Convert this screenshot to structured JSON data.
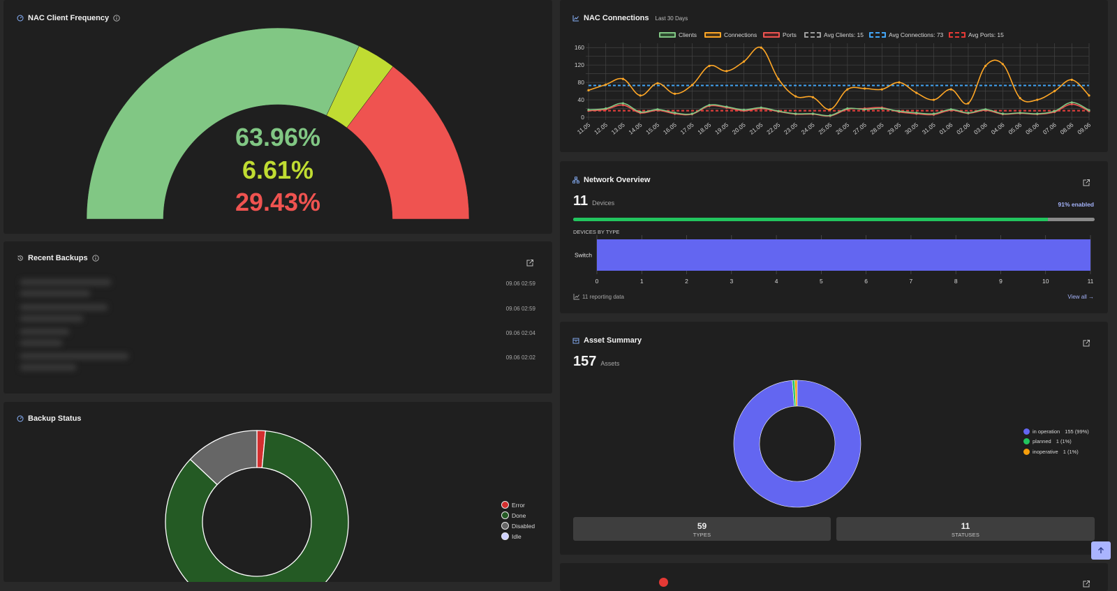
{
  "nac_frequency": {
    "title": "NAC Client Frequency",
    "segments": [
      {
        "percent_label": "63.96%",
        "value": 63.96,
        "color": "#81c784"
      },
      {
        "percent_label": "6.61%",
        "value": 6.61,
        "color": "#c0dc32"
      },
      {
        "percent_label": "29.43%",
        "value": 29.43,
        "color": "#ef5350"
      }
    ]
  },
  "recent_backups": {
    "title": "Recent Backups",
    "items": [
      {
        "time": "09.06 02:59"
      },
      {
        "time": "09.06 02:59"
      },
      {
        "time": "09.06 02:04"
      },
      {
        "time": "09.06 02:02"
      }
    ]
  },
  "backup_status": {
    "title": "Backup Status",
    "legend": [
      {
        "label": "Error",
        "color": "#d32f2f"
      },
      {
        "label": "Done",
        "color": "#245a24"
      },
      {
        "label": "Disabled",
        "color": "#666666"
      },
      {
        "label": "Idle",
        "color": "#cfd2ff"
      }
    ]
  },
  "nac_connections": {
    "title": "NAC Connections",
    "subtitle": "Last 30 Days",
    "legend": [
      {
        "label": "Clients",
        "color": "#81c784",
        "dashed": false
      },
      {
        "label": "Connections",
        "color": "#ffa726",
        "dashed": false
      },
      {
        "label": "Ports",
        "color": "#ef5350",
        "dashed": false
      },
      {
        "label": "Avg Clients: 15",
        "color": "#9e9e9e",
        "dashed": true
      },
      {
        "label": "Avg Connections: 73",
        "color": "#42a5f5",
        "dashed": true
      },
      {
        "label": "Avg Ports: 15",
        "color": "#e53935",
        "dashed": true
      }
    ]
  },
  "chart_data": [
    {
      "type": "pie",
      "title": "NAC Client Frequency",
      "categories": [
        "",
        "",
        ""
      ],
      "values": [
        63.96,
        6.61,
        29.43
      ]
    },
    {
      "type": "pie",
      "title": "Backup Status",
      "categories": [
        "Error",
        "Done",
        "Disabled",
        "Idle"
      ],
      "values": [
        1.5,
        85.5,
        13,
        0
      ]
    },
    {
      "type": "line",
      "title": "NAC Connections",
      "subtitle": "Last 30 Days",
      "x": [
        "11.05",
        "12.05",
        "13.05",
        "14.05",
        "15.05",
        "16.05",
        "17.05",
        "18.05",
        "19.05",
        "20.05",
        "21.05",
        "22.05",
        "23.05",
        "24.05",
        "25.05",
        "26.05",
        "27.05",
        "28.05",
        "29.05",
        "30.05",
        "31.05",
        "01.06",
        "02.06",
        "03.06",
        "04.06",
        "05.06",
        "06.06",
        "07.06",
        "08.06",
        "09.06"
      ],
      "ylim": [
        0,
        170
      ],
      "yticks": [
        0,
        40,
        80,
        120,
        160
      ],
      "grid": true,
      "legend_position": "top",
      "series": [
        {
          "name": "Clients",
          "color": "#81c784",
          "values": [
            17,
            20,
            32,
            12,
            18,
            10,
            8,
            28,
            24,
            17,
            22,
            14,
            8,
            8,
            4,
            20,
            18,
            20,
            14,
            10,
            8,
            18,
            10,
            18,
            8,
            10,
            8,
            14,
            34,
            16
          ]
        },
        {
          "name": "Connections",
          "color": "#ffa726",
          "values": [
            62,
            75,
            88,
            50,
            78,
            54,
            74,
            118,
            106,
            128,
            160,
            88,
            48,
            46,
            18,
            64,
            66,
            64,
            80,
            56,
            40,
            64,
            32,
            118,
            122,
            44,
            40,
            60,
            86,
            50
          ]
        },
        {
          "name": "Ports",
          "color": "#ef5350",
          "values": [
            15,
            18,
            28,
            10,
            16,
            8,
            7,
            26,
            22,
            15,
            20,
            13,
            7,
            7,
            3,
            18,
            20,
            22,
            12,
            8,
            6,
            16,
            9,
            16,
            7,
            9,
            7,
            12,
            30,
            14
          ]
        },
        {
          "name": "Avg Clients: 15",
          "color": "#9e9e9e",
          "values": [
            15,
            15,
            15,
            15,
            15,
            15,
            15,
            15,
            15,
            15,
            15,
            15,
            15,
            15,
            15,
            15,
            15,
            15,
            15,
            15,
            15,
            15,
            15,
            15,
            15,
            15,
            15,
            15,
            15,
            15
          ]
        },
        {
          "name": "Avg Connections: 73",
          "color": "#42a5f5",
          "values": [
            73,
            73,
            73,
            73,
            73,
            73,
            73,
            73,
            73,
            73,
            73,
            73,
            73,
            73,
            73,
            73,
            73,
            73,
            73,
            73,
            73,
            73,
            73,
            73,
            73,
            73,
            73,
            73,
            73,
            73
          ]
        },
        {
          "name": "Avg Ports: 15",
          "color": "#e53935",
          "values": [
            15,
            15,
            15,
            15,
            15,
            15,
            15,
            15,
            15,
            15,
            15,
            15,
            15,
            15,
            15,
            15,
            15,
            15,
            15,
            15,
            15,
            15,
            15,
            15,
            15,
            15,
            15,
            15,
            15,
            15
          ]
        }
      ]
    },
    {
      "type": "bar",
      "title": "DEVICES BY TYPE",
      "categories": [
        "Switch"
      ],
      "values": [
        11
      ],
      "xlim": [
        0,
        11
      ],
      "xticks": [
        "0",
        "1",
        "2",
        "3",
        "4",
        "5",
        "6",
        "7",
        "8",
        "9",
        "10",
        "11"
      ],
      "grid": true
    },
    {
      "type": "pie",
      "title": "Asset Summary",
      "categories": [
        "in operation",
        "planned",
        "inoperative"
      ],
      "values": [
        155,
        1,
        1
      ]
    }
  ],
  "network_overview": {
    "title": "Network Overview",
    "device_count": "11",
    "device_label": "Devices",
    "enabled_label": "91% enabled",
    "enabled_fraction": 0.91,
    "section_label": "DEVICES BY TYPE",
    "bar_color": "#6366f1",
    "reporting_text": "11 reporting data",
    "view_all": "View all →"
  },
  "asset_summary": {
    "title": "Asset Summary",
    "count": "157",
    "count_label": "Assets",
    "legend": [
      {
        "label": "in operation",
        "value": "155 (99%)",
        "color": "#6366f1"
      },
      {
        "label": "planned",
        "value": "1 (1%)",
        "color": "#22c55e"
      },
      {
        "label": "inoperative",
        "value": "1 (1%)",
        "color": "#f59e0b"
      }
    ],
    "stats": [
      {
        "number": "59",
        "label": "TYPES"
      },
      {
        "number": "11",
        "label": "STATUSES"
      }
    ]
  }
}
